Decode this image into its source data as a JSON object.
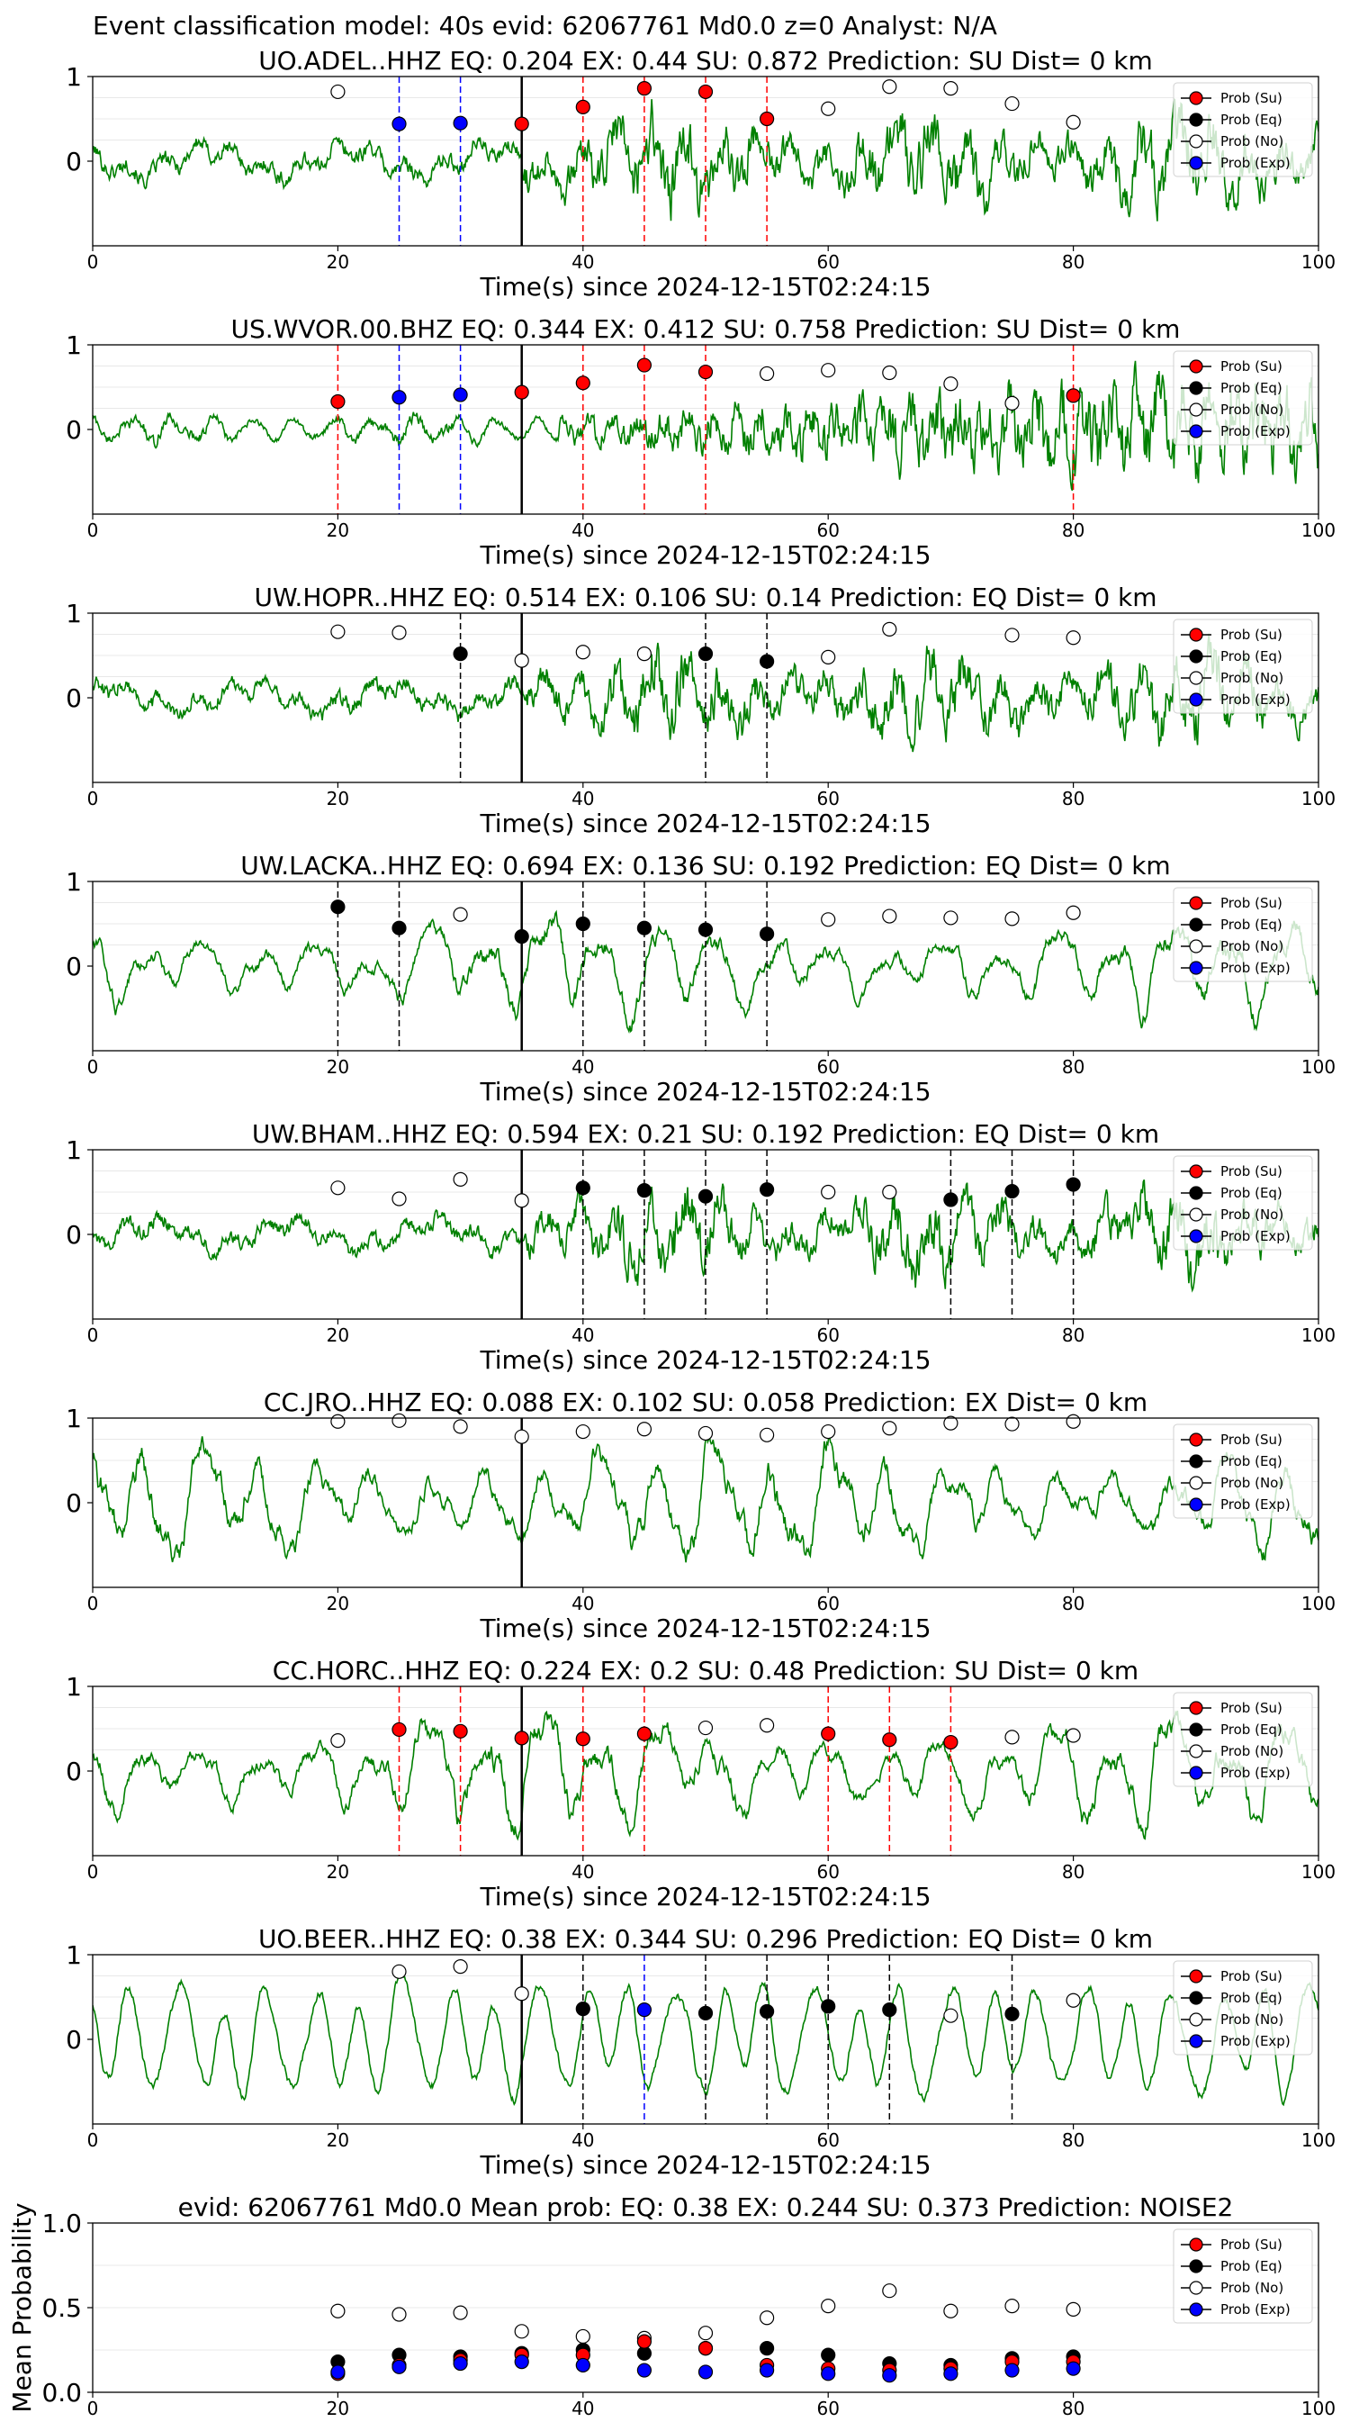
{
  "figure_title": "Event classification model: 40s evid: 62067761 Md0.0 z=0 Analyst: N/A",
  "colors": {
    "waveform": "#008000",
    "su": "#ff0000",
    "eq": "#000000",
    "no": "#ffffff",
    "exp": "#0000ff",
    "su_line": "#ff0000",
    "eq_line": "#000000",
    "exp_line": "#0000ff"
  },
  "legend_labels": [
    "Prob (Su)",
    "Prob (Eq)",
    "Prob (No)",
    "Prob (Exp)"
  ],
  "chart_data": [
    {
      "type": "scatter",
      "title": "UO.ADEL..HHZ   EQ: 0.204  EX: 0.44  SU: 0.872   Prediction: SU    Dist= 0 km",
      "xlabel": "Time(s) since 2024-12-15T02:24:15",
      "xlim": [
        0,
        100
      ],
      "ylim": [
        -1,
        1
      ],
      "yticks": [
        0,
        1
      ],
      "xticks": [
        0,
        20,
        40,
        60,
        80,
        100
      ],
      "pick_time": 35,
      "waveform_style": "noisy",
      "waveform_amplitude": 0.95,
      "points": [
        {
          "x": 20,
          "y": 0.82,
          "cls": "no"
        },
        {
          "x": 25,
          "y": 0.44,
          "cls": "exp"
        },
        {
          "x": 30,
          "y": 0.45,
          "cls": "exp"
        },
        {
          "x": 35,
          "y": 0.44,
          "cls": "su"
        },
        {
          "x": 40,
          "y": 0.64,
          "cls": "su"
        },
        {
          "x": 45,
          "y": 0.86,
          "cls": "su"
        },
        {
          "x": 50,
          "y": 0.82,
          "cls": "su"
        },
        {
          "x": 55,
          "y": 0.5,
          "cls": "su"
        },
        {
          "x": 60,
          "y": 0.62,
          "cls": "no"
        },
        {
          "x": 65,
          "y": 0.88,
          "cls": "no"
        },
        {
          "x": 70,
          "y": 0.86,
          "cls": "no"
        },
        {
          "x": 75,
          "y": 0.68,
          "cls": "no"
        },
        {
          "x": 80,
          "y": 0.46,
          "cls": "no"
        }
      ],
      "vlines": [
        {
          "x": 25,
          "cls": "exp"
        },
        {
          "x": 30,
          "cls": "exp"
        },
        {
          "x": 40,
          "cls": "su"
        },
        {
          "x": 45,
          "cls": "su"
        },
        {
          "x": 50,
          "cls": "su"
        },
        {
          "x": 55,
          "cls": "su"
        }
      ]
    },
    {
      "type": "scatter",
      "title": "US.WVOR.00.BHZ   EQ: 0.344  EX: 0.412  SU: 0.758   Prediction: SU    Dist= 0 km",
      "xlabel": "Time(s) since 2024-12-15T02:24:15",
      "xlim": [
        0,
        100
      ],
      "ylim": [
        -1,
        1
      ],
      "yticks": [
        0,
        1
      ],
      "xticks": [
        0,
        20,
        40,
        60,
        80,
        100
      ],
      "pick_time": 35,
      "waveform_style": "growing",
      "waveform_amplitude": 0.95,
      "points": [
        {
          "x": 20,
          "y": 0.33,
          "cls": "su"
        },
        {
          "x": 25,
          "y": 0.38,
          "cls": "exp"
        },
        {
          "x": 30,
          "y": 0.41,
          "cls": "exp"
        },
        {
          "x": 35,
          "y": 0.44,
          "cls": "su"
        },
        {
          "x": 40,
          "y": 0.55,
          "cls": "su"
        },
        {
          "x": 45,
          "y": 0.76,
          "cls": "su"
        },
        {
          "x": 50,
          "y": 0.68,
          "cls": "su"
        },
        {
          "x": 55,
          "y": 0.66,
          "cls": "no"
        },
        {
          "x": 60,
          "y": 0.7,
          "cls": "no"
        },
        {
          "x": 65,
          "y": 0.67,
          "cls": "no"
        },
        {
          "x": 70,
          "y": 0.54,
          "cls": "no"
        },
        {
          "x": 75,
          "y": 0.31,
          "cls": "no"
        },
        {
          "x": 80,
          "y": 0.4,
          "cls": "su"
        }
      ],
      "vlines": [
        {
          "x": 20,
          "cls": "su"
        },
        {
          "x": 25,
          "cls": "exp"
        },
        {
          "x": 30,
          "cls": "exp"
        },
        {
          "x": 40,
          "cls": "su"
        },
        {
          "x": 45,
          "cls": "su"
        },
        {
          "x": 50,
          "cls": "su"
        },
        {
          "x": 80,
          "cls": "su"
        }
      ]
    },
    {
      "type": "scatter",
      "title": "UW.HOPR..HHZ   EQ: 0.514  EX: 0.106  SU: 0.14   Prediction: EQ    Dist= 0 km",
      "xlabel": "Time(s) since 2024-12-15T02:24:15",
      "xlim": [
        0,
        100
      ],
      "ylim": [
        -1,
        1
      ],
      "yticks": [
        0,
        1
      ],
      "xticks": [
        0,
        20,
        40,
        60,
        80,
        100
      ],
      "pick_time": 35,
      "waveform_style": "noisy",
      "waveform_amplitude": 0.9,
      "points": [
        {
          "x": 20,
          "y": 0.78,
          "cls": "no"
        },
        {
          "x": 25,
          "y": 0.77,
          "cls": "no"
        },
        {
          "x": 30,
          "y": 0.52,
          "cls": "eq"
        },
        {
          "x": 35,
          "y": 0.44,
          "cls": "no"
        },
        {
          "x": 40,
          "y": 0.54,
          "cls": "no"
        },
        {
          "x": 45,
          "y": 0.52,
          "cls": "no"
        },
        {
          "x": 50,
          "y": 0.52,
          "cls": "eq"
        },
        {
          "x": 55,
          "y": 0.43,
          "cls": "eq"
        },
        {
          "x": 60,
          "y": 0.48,
          "cls": "no"
        },
        {
          "x": 65,
          "y": 0.81,
          "cls": "no"
        },
        {
          "x": 75,
          "y": 0.74,
          "cls": "no"
        },
        {
          "x": 80,
          "y": 0.71,
          "cls": "no"
        }
      ],
      "vlines": [
        {
          "x": 30,
          "cls": "eq"
        },
        {
          "x": 50,
          "cls": "eq"
        },
        {
          "x": 55,
          "cls": "eq"
        }
      ]
    },
    {
      "type": "scatter",
      "title": "UW.LACKA..HHZ   EQ: 0.694  EX: 0.136  SU: 0.192   Prediction: EQ    Dist= 0 km",
      "xlabel": "Time(s) since 2024-12-15T02:24:15",
      "xlim": [
        0,
        100
      ],
      "ylim": [
        -1,
        1
      ],
      "yticks": [
        0,
        1
      ],
      "xticks": [
        0,
        20,
        40,
        60,
        80,
        100
      ],
      "pick_time": 35,
      "waveform_style": "wavy",
      "waveform_amplitude": 0.6,
      "points": [
        {
          "x": 20,
          "y": 0.7,
          "cls": "eq"
        },
        {
          "x": 25,
          "y": 0.45,
          "cls": "eq"
        },
        {
          "x": 30,
          "y": 0.61,
          "cls": "no"
        },
        {
          "x": 35,
          "y": 0.35,
          "cls": "eq"
        },
        {
          "x": 40,
          "y": 0.5,
          "cls": "eq"
        },
        {
          "x": 45,
          "y": 0.45,
          "cls": "eq"
        },
        {
          "x": 50,
          "y": 0.43,
          "cls": "eq"
        },
        {
          "x": 55,
          "y": 0.38,
          "cls": "eq"
        },
        {
          "x": 60,
          "y": 0.55,
          "cls": "no"
        },
        {
          "x": 65,
          "y": 0.59,
          "cls": "no"
        },
        {
          "x": 70,
          "y": 0.57,
          "cls": "no"
        },
        {
          "x": 75,
          "y": 0.56,
          "cls": "no"
        },
        {
          "x": 80,
          "y": 0.63,
          "cls": "no"
        }
      ],
      "vlines": [
        {
          "x": 20,
          "cls": "eq"
        },
        {
          "x": 25,
          "cls": "eq"
        },
        {
          "x": 40,
          "cls": "eq"
        },
        {
          "x": 45,
          "cls": "eq"
        },
        {
          "x": 50,
          "cls": "eq"
        },
        {
          "x": 55,
          "cls": "eq"
        }
      ]
    },
    {
      "type": "scatter",
      "title": "UW.BHAM..HHZ   EQ: 0.594  EX: 0.21  SU: 0.192   Prediction: EQ    Dist= 0 km",
      "xlabel": "Time(s) since 2024-12-15T02:24:15",
      "xlim": [
        0,
        100
      ],
      "ylim": [
        -1,
        1
      ],
      "yticks": [
        0,
        1
      ],
      "xticks": [
        0,
        20,
        40,
        60,
        80,
        100
      ],
      "pick_time": 35,
      "waveform_style": "noisy",
      "waveform_amplitude": 0.85,
      "points": [
        {
          "x": 20,
          "y": 0.55,
          "cls": "no"
        },
        {
          "x": 25,
          "y": 0.42,
          "cls": "no"
        },
        {
          "x": 30,
          "y": 0.65,
          "cls": "no"
        },
        {
          "x": 35,
          "y": 0.4,
          "cls": "no"
        },
        {
          "x": 40,
          "y": 0.55,
          "cls": "eq"
        },
        {
          "x": 45,
          "y": 0.52,
          "cls": "eq"
        },
        {
          "x": 50,
          "y": 0.45,
          "cls": "eq"
        },
        {
          "x": 55,
          "y": 0.53,
          "cls": "eq"
        },
        {
          "x": 60,
          "y": 0.5,
          "cls": "no"
        },
        {
          "x": 65,
          "y": 0.5,
          "cls": "no"
        },
        {
          "x": 70,
          "y": 0.41,
          "cls": "eq"
        },
        {
          "x": 75,
          "y": 0.51,
          "cls": "eq"
        },
        {
          "x": 80,
          "y": 0.59,
          "cls": "eq"
        }
      ],
      "vlines": [
        {
          "x": 40,
          "cls": "eq"
        },
        {
          "x": 45,
          "cls": "eq"
        },
        {
          "x": 50,
          "cls": "eq"
        },
        {
          "x": 55,
          "cls": "eq"
        },
        {
          "x": 70,
          "cls": "eq"
        },
        {
          "x": 75,
          "cls": "eq"
        },
        {
          "x": 80,
          "cls": "eq"
        }
      ]
    },
    {
      "type": "scatter",
      "title": "CC.JRO..HHZ   EQ: 0.088  EX: 0.102  SU: 0.058   Prediction: EX    Dist= 0 km",
      "xlabel": "Time(s) since 2024-12-15T02:24:15",
      "xlim": [
        0,
        100
      ],
      "ylim": [
        -1,
        1
      ],
      "yticks": [
        0,
        1
      ],
      "xticks": [
        0,
        20,
        40,
        60,
        80,
        100
      ],
      "pick_time": 35,
      "waveform_style": "wavy",
      "waveform_amplitude": 0.8,
      "points": [
        {
          "x": 20,
          "y": 0.96,
          "cls": "no"
        },
        {
          "x": 25,
          "y": 0.97,
          "cls": "no"
        },
        {
          "x": 30,
          "y": 0.9,
          "cls": "no"
        },
        {
          "x": 35,
          "y": 0.78,
          "cls": "no"
        },
        {
          "x": 40,
          "y": 0.84,
          "cls": "no"
        },
        {
          "x": 45,
          "y": 0.87,
          "cls": "no"
        },
        {
          "x": 50,
          "y": 0.82,
          "cls": "no"
        },
        {
          "x": 55,
          "y": 0.8,
          "cls": "no"
        },
        {
          "x": 60,
          "y": 0.84,
          "cls": "no"
        },
        {
          "x": 65,
          "y": 0.88,
          "cls": "no"
        },
        {
          "x": 70,
          "y": 0.94,
          "cls": "no"
        },
        {
          "x": 75,
          "y": 0.93,
          "cls": "no"
        },
        {
          "x": 80,
          "y": 0.96,
          "cls": "no"
        }
      ],
      "vlines": []
    },
    {
      "type": "scatter",
      "title": "CC.HORC..HHZ   EQ: 0.224  EX: 0.2  SU: 0.48   Prediction: SU    Dist= 0 km",
      "xlabel": "Time(s) since 2024-12-15T02:24:15",
      "xlim": [
        0,
        100
      ],
      "ylim": [
        -1,
        1
      ],
      "yticks": [
        0,
        1
      ],
      "xticks": [
        0,
        20,
        40,
        60,
        80,
        100
      ],
      "pick_time": 35,
      "waveform_style": "wavy",
      "waveform_amplitude": 0.7,
      "points": [
        {
          "x": 20,
          "y": 0.36,
          "cls": "no"
        },
        {
          "x": 25,
          "y": 0.49,
          "cls": "su"
        },
        {
          "x": 30,
          "y": 0.47,
          "cls": "su"
        },
        {
          "x": 35,
          "y": 0.39,
          "cls": "su"
        },
        {
          "x": 40,
          "y": 0.38,
          "cls": "su"
        },
        {
          "x": 45,
          "y": 0.44,
          "cls": "su"
        },
        {
          "x": 50,
          "y": 0.51,
          "cls": "no"
        },
        {
          "x": 55,
          "y": 0.54,
          "cls": "no"
        },
        {
          "x": 60,
          "y": 0.44,
          "cls": "su"
        },
        {
          "x": 65,
          "y": 0.37,
          "cls": "su"
        },
        {
          "x": 70,
          "y": 0.34,
          "cls": "su"
        },
        {
          "x": 75,
          "y": 0.4,
          "cls": "no"
        },
        {
          "x": 80,
          "y": 0.42,
          "cls": "no"
        }
      ],
      "vlines": [
        {
          "x": 25,
          "cls": "su"
        },
        {
          "x": 30,
          "cls": "su"
        },
        {
          "x": 40,
          "cls": "su"
        },
        {
          "x": 45,
          "cls": "su"
        },
        {
          "x": 60,
          "cls": "su"
        },
        {
          "x": 65,
          "cls": "su"
        },
        {
          "x": 70,
          "cls": "su"
        }
      ]
    },
    {
      "type": "scatter",
      "title": "UO.BEER..HHZ   EQ: 0.38  EX: 0.344  SU: 0.296   Prediction: EQ    Dist= 0 km",
      "xlabel": "Time(s) since 2024-12-15T02:24:15",
      "xlim": [
        0,
        100
      ],
      "ylim": [
        -1,
        1
      ],
      "yticks": [
        0,
        1
      ],
      "xticks": [
        0,
        20,
        40,
        60,
        80,
        100
      ],
      "pick_time": 35,
      "waveform_style": "smooth",
      "waveform_amplitude": 0.85,
      "points": [
        {
          "x": 25,
          "y": 0.8,
          "cls": "no"
        },
        {
          "x": 30,
          "y": 0.86,
          "cls": "no"
        },
        {
          "x": 35,
          "y": 0.54,
          "cls": "no"
        },
        {
          "x": 40,
          "y": 0.36,
          "cls": "eq"
        },
        {
          "x": 45,
          "y": 0.35,
          "cls": "exp"
        },
        {
          "x": 50,
          "y": 0.31,
          "cls": "eq"
        },
        {
          "x": 55,
          "y": 0.33,
          "cls": "eq"
        },
        {
          "x": 60,
          "y": 0.39,
          "cls": "eq"
        },
        {
          "x": 65,
          "y": 0.35,
          "cls": "eq"
        },
        {
          "x": 70,
          "y": 0.28,
          "cls": "no"
        },
        {
          "x": 75,
          "y": 0.3,
          "cls": "eq"
        },
        {
          "x": 80,
          "y": 0.46,
          "cls": "no"
        }
      ],
      "vlines": [
        {
          "x": 40,
          "cls": "eq"
        },
        {
          "x": 45,
          "cls": "exp"
        },
        {
          "x": 50,
          "cls": "eq"
        },
        {
          "x": 55,
          "cls": "eq"
        },
        {
          "x": 60,
          "cls": "eq"
        },
        {
          "x": 65,
          "cls": "eq"
        },
        {
          "x": 75,
          "cls": "eq"
        }
      ]
    },
    {
      "type": "scatter",
      "title": "evid: 62067761  Md0.0   Mean prob:   EQ: 0.38  EX: 0.244  SU: 0.373   Prediction: NOISE2",
      "xlabel": "",
      "ylabel": "Mean Probability",
      "xlim": [
        0,
        100
      ],
      "ylim": [
        0,
        1
      ],
      "yticks": [
        0,
        0.5,
        1
      ],
      "ytick_labels": [
        "0.0",
        "0.5",
        "1.0"
      ],
      "xticks": [
        0,
        20,
        40,
        60,
        80,
        100
      ],
      "grid": true,
      "x": [
        20,
        25,
        30,
        35,
        40,
        45,
        50,
        55,
        60,
        65,
        70,
        75,
        80
      ],
      "series": [
        {
          "cls": "no",
          "name": "Prob (No)",
          "values": [
            0.48,
            0.46,
            0.47,
            0.36,
            0.33,
            0.32,
            0.35,
            0.44,
            0.51,
            0.6,
            0.48,
            0.51,
            0.49
          ]
        },
        {
          "cls": "eq",
          "name": "Prob (Eq)",
          "values": [
            0.18,
            0.22,
            0.21,
            0.23,
            0.25,
            0.23,
            0.26,
            0.26,
            0.22,
            0.17,
            0.16,
            0.2,
            0.21
          ]
        },
        {
          "cls": "su",
          "name": "Prob (Su)",
          "values": [
            0.11,
            0.16,
            0.19,
            0.22,
            0.22,
            0.3,
            0.26,
            0.16,
            0.14,
            0.13,
            0.14,
            0.18,
            0.18
          ]
        },
        {
          "cls": "exp",
          "name": "Prob (Exp)",
          "values": [
            0.12,
            0.15,
            0.17,
            0.18,
            0.16,
            0.13,
            0.12,
            0.13,
            0.11,
            0.1,
            0.11,
            0.13,
            0.14
          ]
        }
      ]
    }
  ]
}
